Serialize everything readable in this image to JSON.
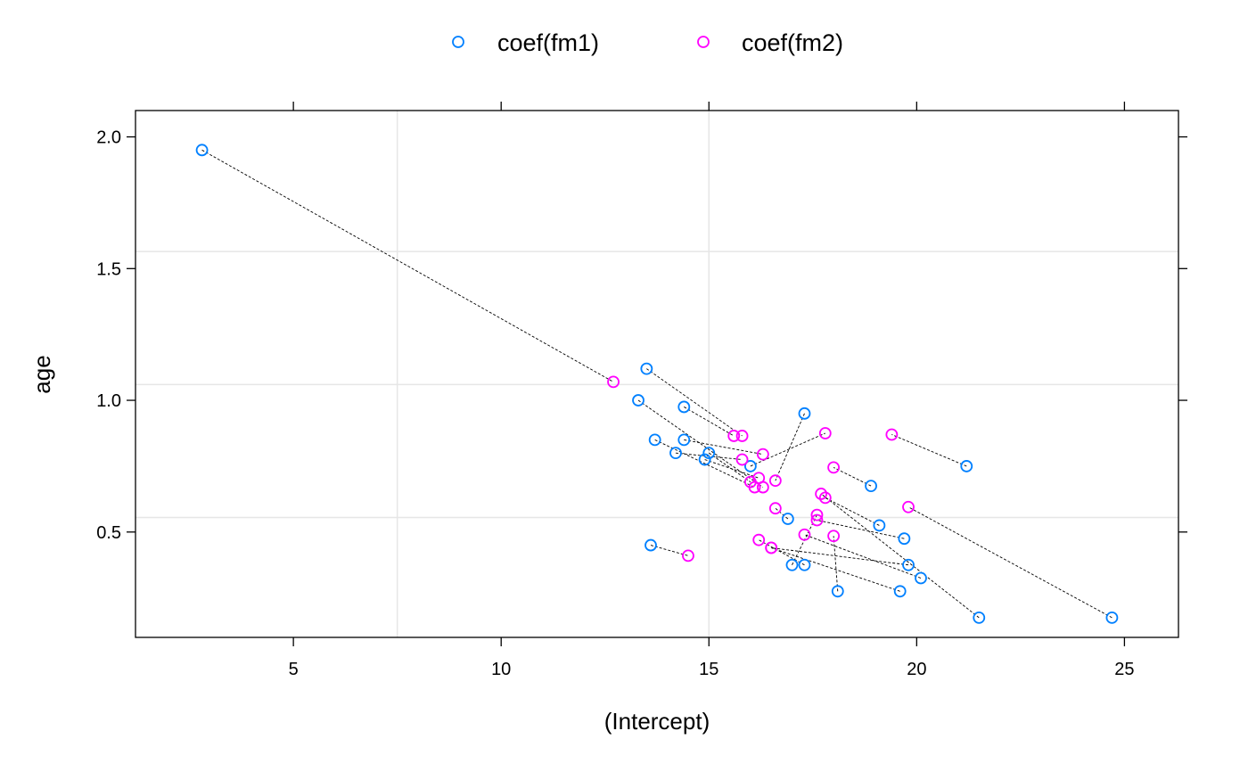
{
  "chart_data": {
    "type": "scatter",
    "title": "",
    "xlabel": "(Intercept)",
    "ylabel": "age",
    "xlim": [
      1.2,
      26.3
    ],
    "ylim": [
      0.1,
      2.1
    ],
    "x_ticks": [
      5,
      10,
      15,
      20,
      25
    ],
    "y_ticks": [
      0.5,
      1.0,
      1.5,
      2.0
    ],
    "x_tick_labels": [
      "5",
      "10",
      "15",
      "20",
      "25"
    ],
    "y_tick_labels": [
      "0.5",
      "1.0",
      "1.5",
      "2.0"
    ],
    "x_grid": [
      7.5,
      15
    ],
    "y_grid": [
      0.555,
      1.06,
      1.565
    ],
    "grid": true,
    "legend": {
      "placement": "top",
      "entries": [
        "coef(fm1)",
        "coef(fm2)"
      ]
    },
    "colors": {
      "fm1": "#0080ff",
      "fm2": "#ff00ff",
      "grid": "#e6e6e6",
      "connector": "#000000"
    },
    "series": [
      {
        "name": "coef(fm1)",
        "x": [
          2.8,
          13.5,
          13.3,
          14.4,
          13.7,
          14.4,
          14.2,
          15.0,
          14.9,
          16.0,
          17.3,
          18.9,
          21.2,
          19.1,
          16.9,
          19.7,
          17.0,
          17.3,
          19.8,
          20.1,
          18.1,
          19.6,
          21.5,
          24.7,
          13.6
        ],
        "y": [
          1.95,
          1.12,
          1.0,
          0.975,
          0.85,
          0.85,
          0.8,
          0.8,
          0.775,
          0.75,
          0.95,
          0.675,
          0.75,
          0.525,
          0.55,
          0.475,
          0.375,
          0.375,
          0.375,
          0.325,
          0.275,
          0.275,
          0.175,
          0.175,
          0.45
        ]
      },
      {
        "name": "coef(fm2)",
        "x": [
          12.7,
          15.8,
          16.3,
          15.6,
          16.1,
          16.3,
          15.8,
          16.0,
          16.2,
          17.8,
          16.6,
          18.0,
          19.4,
          17.8,
          16.6,
          17.6,
          17.6,
          16.2,
          16.5,
          17.3,
          18.0,
          16.5,
          17.7,
          19.8,
          14.5
        ],
        "y": [
          1.07,
          0.865,
          0.67,
          0.865,
          0.67,
          0.795,
          0.775,
          0.69,
          0.705,
          0.875,
          0.695,
          0.745,
          0.87,
          0.63,
          0.59,
          0.545,
          0.565,
          0.47,
          0.44,
          0.49,
          0.485,
          0.44,
          0.645,
          0.595,
          0.41
        ]
      }
    ]
  }
}
